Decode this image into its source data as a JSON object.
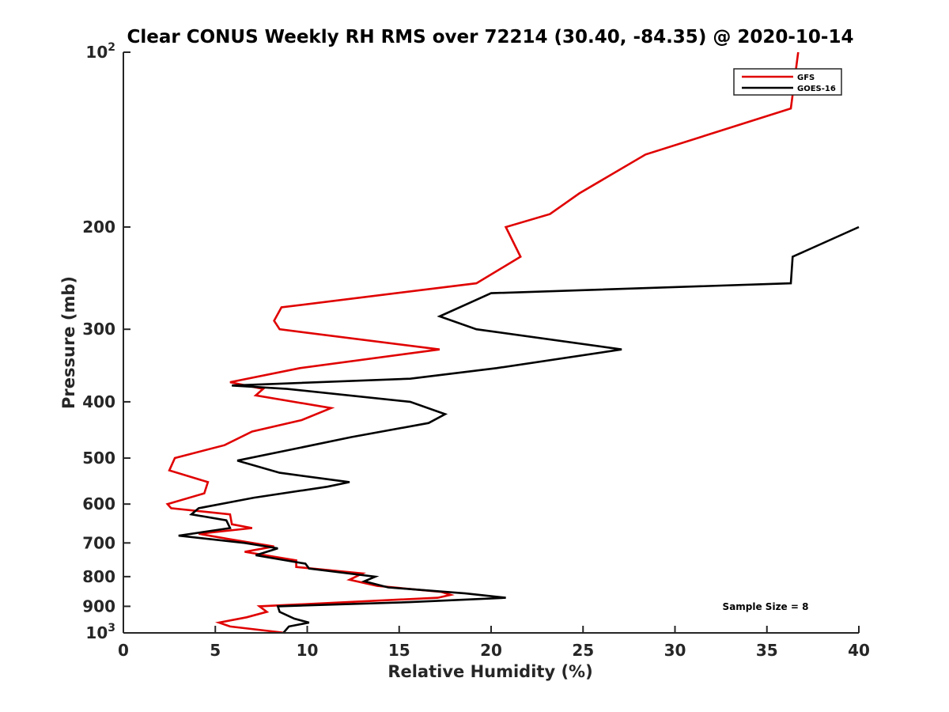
{
  "chart_data": {
    "type": "line",
    "title": "Clear CONUS Weekly RH RMS over 72214 (30.40, -84.35) @ 2020-10-14",
    "xlabel": "Relative Humidity (%)",
    "ylabel": "Pressure (mb)",
    "xlim": [
      0,
      40
    ],
    "ylim": [
      100,
      1000
    ],
    "yscale": "log",
    "y_reversed": true,
    "grid": false,
    "legend_position": "top-right",
    "x_ticks": [
      0,
      5,
      10,
      15,
      20,
      25,
      30,
      35,
      40
    ],
    "y_ticks": [
      {
        "value": 100,
        "base": "10",
        "exp": "2"
      },
      {
        "value": 200,
        "label": "200"
      },
      {
        "value": 300,
        "label": "300"
      },
      {
        "value": 400,
        "label": "400"
      },
      {
        "value": 500,
        "label": "500"
      },
      {
        "value": 600,
        "label": "600"
      },
      {
        "value": 700,
        "label": "700"
      },
      {
        "value": 800,
        "label": "800"
      },
      {
        "value": 900,
        "label": "900"
      },
      {
        "value": 1000,
        "base": "10",
        "exp": "3"
      }
    ],
    "annotation": "Sample Size = 8",
    "series": [
      {
        "name": "GFS",
        "color": "#e00000",
        "points": [
          [
            36.7,
            100
          ],
          [
            36.3,
            125
          ],
          [
            28.4,
            150
          ],
          [
            24.8,
            175
          ],
          [
            23.2,
            190
          ],
          [
            20.8,
            200
          ],
          [
            21.6,
            225
          ],
          [
            19.2,
            250
          ],
          [
            8.6,
            275
          ],
          [
            8.2,
            290
          ],
          [
            8.5,
            300
          ],
          [
            17.2,
            325
          ],
          [
            9.6,
            350
          ],
          [
            5.8,
            370
          ],
          [
            7.6,
            380
          ],
          [
            7.2,
            390
          ],
          [
            11.3,
            410
          ],
          [
            9.7,
            430
          ],
          [
            7.0,
            450
          ],
          [
            5.5,
            475
          ],
          [
            2.8,
            500
          ],
          [
            2.5,
            525
          ],
          [
            4.6,
            550
          ],
          [
            4.4,
            575
          ],
          [
            2.4,
            600
          ],
          [
            2.6,
            610
          ],
          [
            5.8,
            625
          ],
          [
            5.9,
            650
          ],
          [
            7.0,
            660
          ],
          [
            4.1,
            675
          ],
          [
            5.8,
            690
          ],
          [
            8.2,
            710
          ],
          [
            6.6,
            725
          ],
          [
            9.4,
            750
          ],
          [
            9.4,
            770
          ],
          [
            13.0,
            790
          ],
          [
            12.3,
            810
          ],
          [
            13.8,
            830
          ],
          [
            17.3,
            850
          ],
          [
            17.8,
            860
          ],
          [
            17.1,
            870
          ],
          [
            7.4,
            900
          ],
          [
            7.8,
            920
          ],
          [
            6.7,
            940
          ],
          [
            5.2,
            960
          ],
          [
            5.8,
            975
          ],
          [
            8.8,
            1000
          ]
        ]
      },
      {
        "name": "GOES-16",
        "color": "#000000",
        "points": [
          [
            40.0,
            200
          ],
          [
            36.4,
            225
          ],
          [
            36.3,
            250
          ],
          [
            20.0,
            260
          ],
          [
            17.2,
            285
          ],
          [
            19.2,
            300
          ],
          [
            27.1,
            325
          ],
          [
            20.3,
            350
          ],
          [
            15.6,
            365
          ],
          [
            5.9,
            375
          ],
          [
            8.9,
            380
          ],
          [
            15.6,
            400
          ],
          [
            17.5,
            420
          ],
          [
            16.6,
            435
          ],
          [
            12.4,
            460
          ],
          [
            9.6,
            480
          ],
          [
            6.2,
            505
          ],
          [
            8.5,
            530
          ],
          [
            12.3,
            550
          ],
          [
            11.1,
            560
          ],
          [
            7.1,
            585
          ],
          [
            4.1,
            610
          ],
          [
            3.7,
            625
          ],
          [
            5.6,
            640
          ],
          [
            5.8,
            660
          ],
          [
            3.0,
            680
          ],
          [
            6.6,
            700
          ],
          [
            8.4,
            715
          ],
          [
            7.2,
            735
          ],
          [
            9.9,
            760
          ],
          [
            10.1,
            775
          ],
          [
            13.7,
            800
          ],
          [
            13.1,
            815
          ],
          [
            14.4,
            835
          ],
          [
            18.6,
            855
          ],
          [
            20.8,
            870
          ],
          [
            15.6,
            885
          ],
          [
            8.4,
            900
          ],
          [
            8.5,
            920
          ],
          [
            9.3,
            945
          ],
          [
            10.1,
            960
          ],
          [
            9.0,
            975
          ],
          [
            8.7,
            1000
          ]
        ]
      }
    ]
  }
}
